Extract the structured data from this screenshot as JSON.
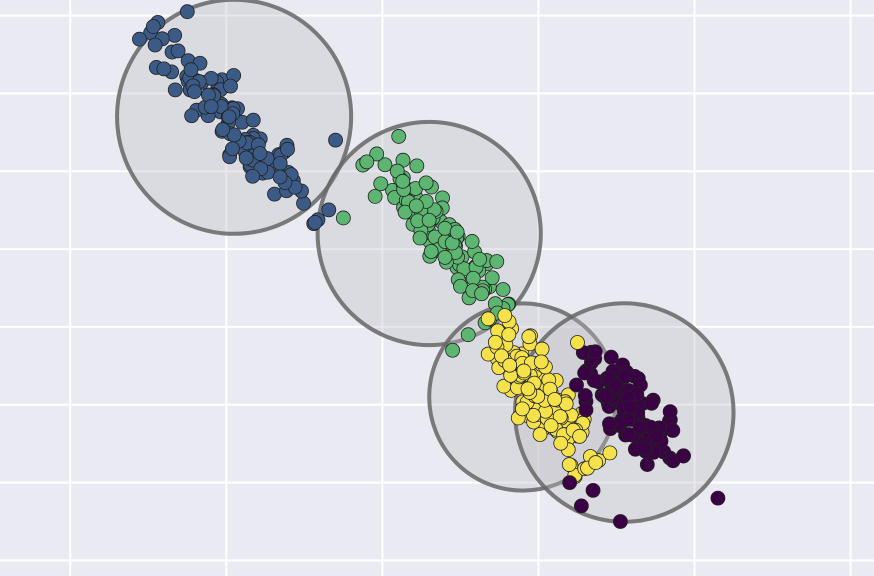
{
  "chart_data": {
    "type": "scatter",
    "title": "",
    "xlabel": "",
    "ylabel": "",
    "grid": true,
    "legend": "none",
    "background": "#eaeaf2",
    "grid_color": "#ffffff",
    "xlim": [
      -9.9,
      1.3
    ],
    "ylim": [
      -10.2,
      -2.8
    ],
    "xticks": [
      -9,
      -7,
      -5,
      -3,
      -1,
      1
    ],
    "yticks": [
      -10,
      -9,
      -8,
      -7,
      -6,
      -5,
      -4,
      -3
    ],
    "series": [
      {
        "color": "#3b5b86",
        "center": [
          -6.9,
          -4.3
        ],
        "radius": 1.5,
        "line": {
          "start": [
            -8.0,
            -3.2
          ],
          "end": [
            -5.8,
            -5.6
          ]
        },
        "n": 110,
        "spread": 0.14
      },
      {
        "color": "#5cb571",
        "center": [
          -4.4,
          -5.8
        ],
        "radius": 1.43,
        "line": {
          "start": [
            -5.1,
            -4.8
          ],
          "end": [
            -3.5,
            -6.8
          ]
        },
        "n": 120,
        "spread": 0.15
      },
      {
        "color": "#f5e24a",
        "center": [
          -3.2,
          -7.9
        ],
        "radius": 1.2,
        "line": {
          "start": [
            -3.65,
            -6.9
          ],
          "end": [
            -2.35,
            -8.8
          ]
        },
        "n": 130,
        "spread": 0.17
      },
      {
        "color": "#3a0244",
        "center": [
          -1.9,
          -8.1
        ],
        "radius": 1.4,
        "line": {
          "start": [
            -2.45,
            -7.35
          ],
          "end": [
            -1.25,
            -8.75
          ]
        },
        "n": 110,
        "spread": 0.16
      }
    ],
    "outliers": [
      {
        "series": 3,
        "x": -2.6,
        "y": -9.0
      },
      {
        "series": 3,
        "x": -2.45,
        "y": -9.3
      },
      {
        "series": 3,
        "x": -1.95,
        "y": -9.5
      },
      {
        "series": 3,
        "x": -0.7,
        "y": -9.2
      },
      {
        "series": 3,
        "x": -2.3,
        "y": -9.1
      },
      {
        "series": 1,
        "x": -5.5,
        "y": -5.6
      },
      {
        "series": 1,
        "x": -3.9,
        "y": -7.1
      },
      {
        "series": 1,
        "x": -4.1,
        "y": -7.3
      },
      {
        "series": 2,
        "x": -2.5,
        "y": -7.2
      },
      {
        "series": 0,
        "x": -5.6,
        "y": -4.6
      },
      {
        "series": 0,
        "x": -7.5,
        "y": -2.95
      }
    ],
    "circle_fill": "rgba(190,190,195,0.35)",
    "circle_stroke": "#666666",
    "point_edge": "#222222"
  }
}
